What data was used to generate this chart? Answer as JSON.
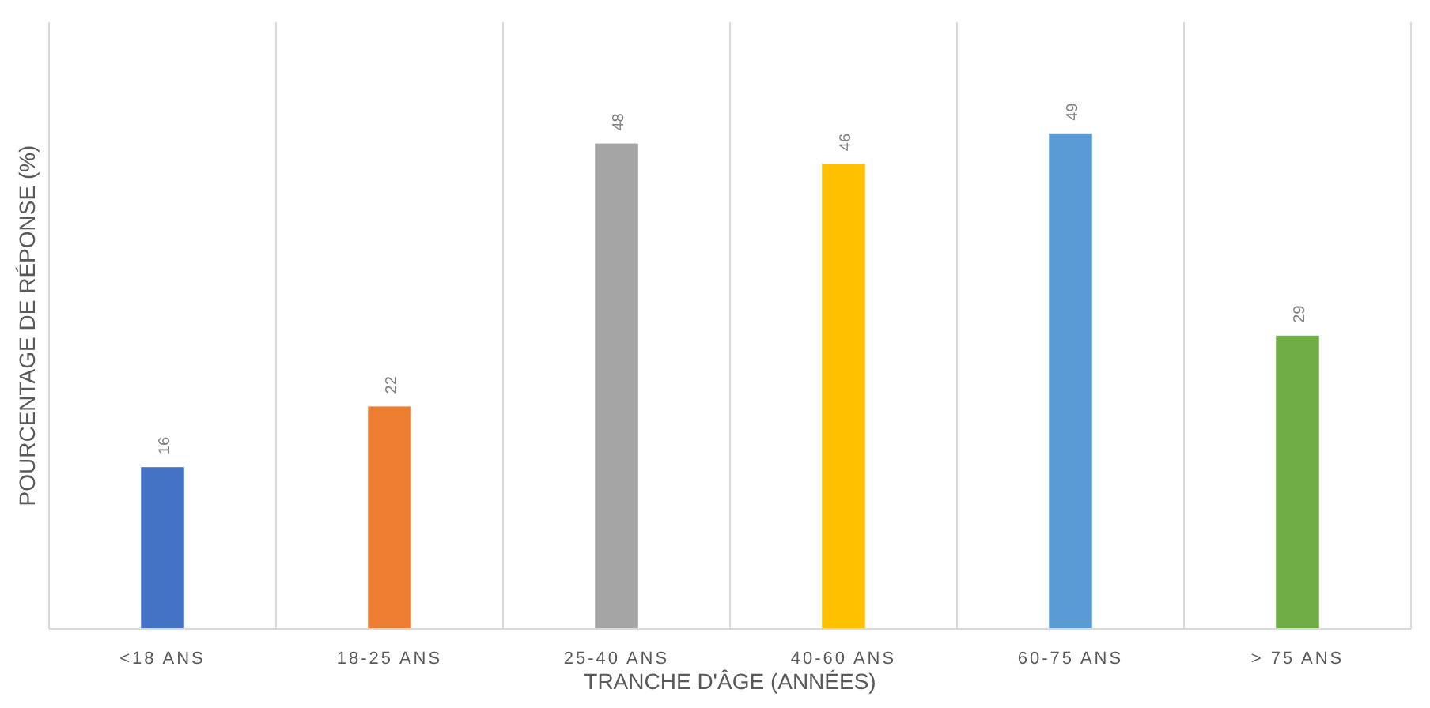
{
  "chart_data": {
    "type": "bar",
    "xlabel": "TRANCHE D'ÂGE (ANNÉES)",
    "ylabel": "POURCENTAGE DE RÉPONSE (%)",
    "categories": [
      "<18 ANS",
      "18-25 ANS",
      "25-40 ANS",
      "40-60 ANS",
      "60-75 ANS",
      "> 75 ANS"
    ],
    "values": [
      16,
      22,
      48,
      46,
      49,
      29
    ],
    "colors": [
      "#4472c4",
      "#ed7d31",
      "#a5a5a5",
      "#ffc000",
      "#5b9bd5",
      "#70ad47"
    ],
    "ylim": [
      0,
      60
    ],
    "data_labels": true,
    "grid": "x",
    "tick_labels": "x"
  }
}
